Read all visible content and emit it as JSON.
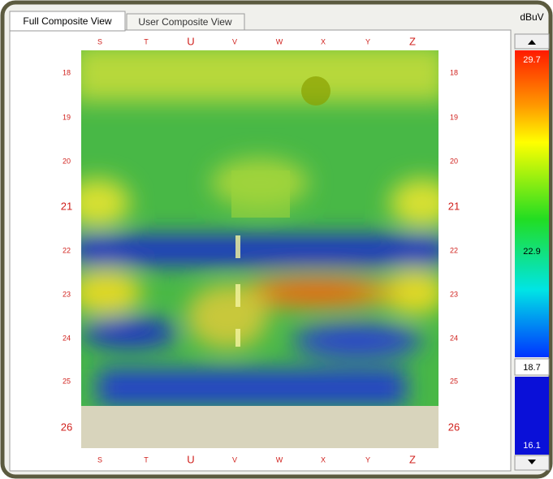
{
  "tabs": [
    "Full Composite View",
    "User Composite View"
  ],
  "columns": [
    "S",
    "T",
    "U",
    "V",
    "W",
    "X",
    "Y",
    "Z"
  ],
  "rows": [
    "18",
    "19",
    "20",
    "21",
    "22",
    "23",
    "24",
    "25",
    "26"
  ],
  "colorbar": {
    "unit": "dBuV",
    "labels": [
      "29.7",
      "22.9",
      "18.7",
      "16.1"
    ]
  }
}
